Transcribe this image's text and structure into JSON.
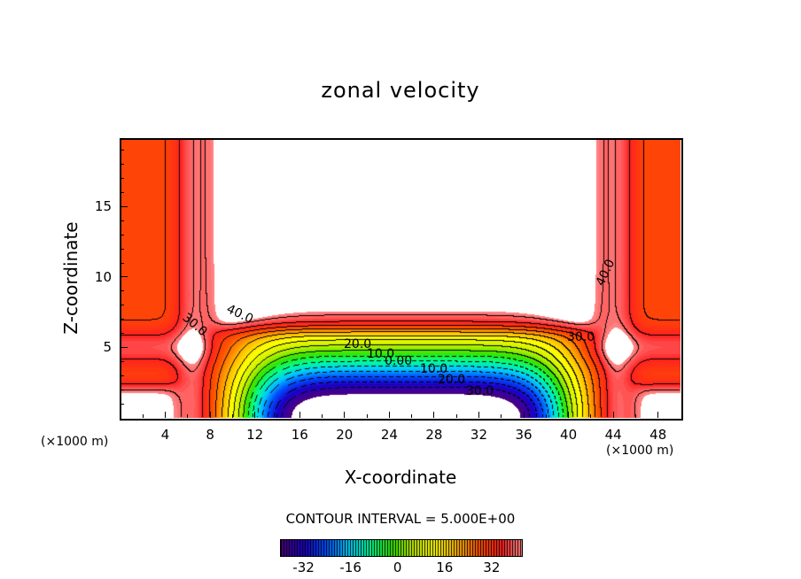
{
  "chart_data": {
    "type": "heatmap",
    "title": "zonal velocity",
    "xlabel": "X-coordinate",
    "ylabel": "Z-coordinate",
    "x_unit": "(×1000 m)",
    "xlim": [
      0,
      50
    ],
    "ylim": [
      0,
      19.8
    ],
    "x_ticks": [
      "4",
      "8",
      "12",
      "16",
      "20",
      "24",
      "28",
      "32",
      "36",
      "40",
      "44",
      "48"
    ],
    "y_ticks": [
      "5",
      "10",
      "15"
    ],
    "contour_interval_text": "CONTOUR INTERVAL = 5.000E+00",
    "contour_interval": 5,
    "contour_labels": [
      "40.0",
      "30.0",
      "40.0",
      "30.0",
      "20.0",
      "10.0",
      "0.00",
      "10.0",
      "20.0",
      "30.0"
    ],
    "colorbar": {
      "range": [
        -40,
        42
      ],
      "ticks": [
        "-32",
        "-16",
        "0",
        "16",
        "32"
      ],
      "tick_values": [
        -32,
        -16,
        0,
        16,
        32
      ],
      "stops": [
        "#4b0082",
        "#1a00c8",
        "#0050ff",
        "#00c8ff",
        "#00ff96",
        "#32e600",
        "#c8f000",
        "#ffff00",
        "#ffb400",
        "#ff5000",
        "#ff2020",
        "#ff9090"
      ]
    },
    "features": {
      "above_range_regions": "upper middle (x 8-42, z>6.5), bottom corners",
      "below_range_region": "bottom middle (x 17-34, z<2)",
      "jet_min": -45,
      "side_max": 42
    }
  }
}
